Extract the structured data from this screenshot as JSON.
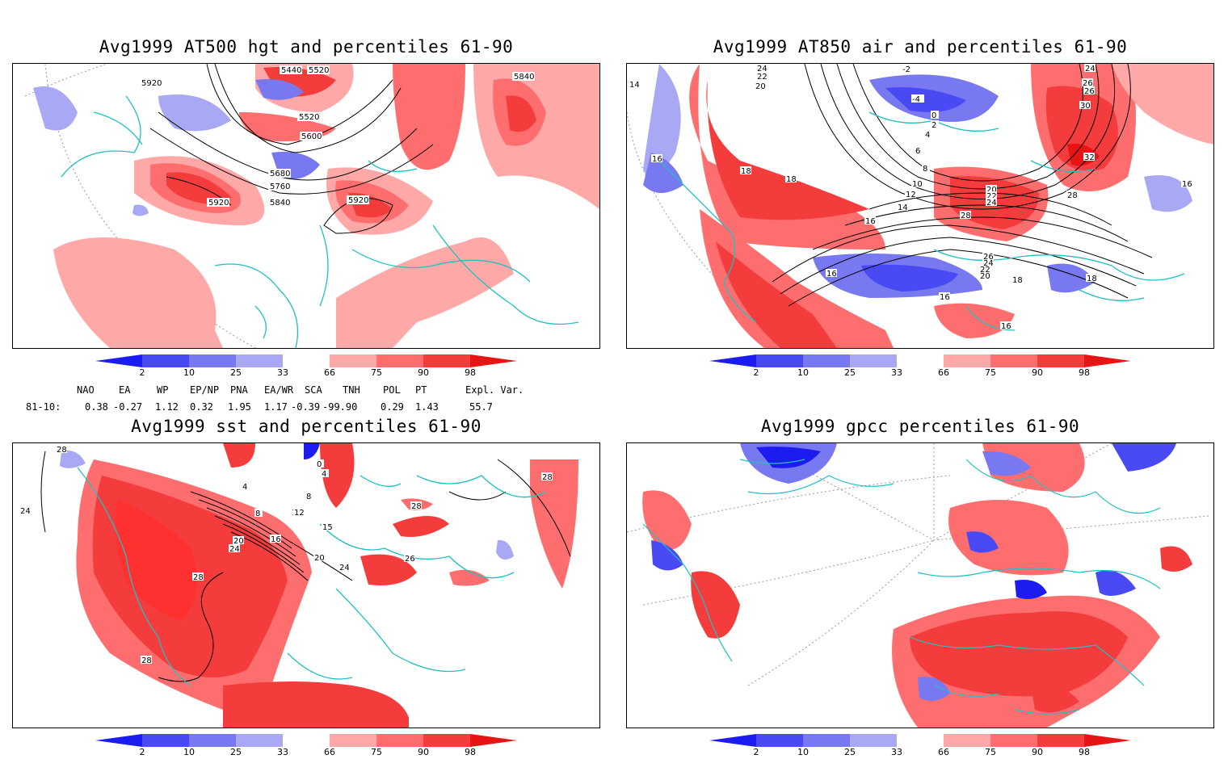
{
  "panels": [
    {
      "title": "Avg1999 AT500 hgt and percentiles 61-90",
      "contour_labels": [
        "5440",
        "5520",
        "5920",
        "5840",
        "5520",
        "5600",
        "5680",
        "5760",
        "5840",
        "5920",
        "5920"
      ]
    },
    {
      "title": "Avg1999 AT850 air and percentiles 61-90",
      "contour_labels": [
        "24",
        "22",
        "20",
        "-2",
        "-4",
        "0",
        "2",
        "4",
        "6",
        "8",
        "10",
        "12",
        "14",
        "16",
        "18",
        "18",
        "16",
        "20",
        "22",
        "24",
        "28",
        "26",
        "30",
        "32",
        "24",
        "26",
        "28",
        "18",
        "16",
        "16",
        "18",
        "20",
        "22",
        "24",
        "26",
        "16",
        "16",
        "14"
      ]
    },
    {
      "title": "Avg1999 sst and percentiles 61-90",
      "contour_labels": [
        "28",
        "24",
        "4",
        "8",
        "12",
        "16",
        "20",
        "24",
        "28",
        "28",
        "28",
        "24",
        "0",
        "4",
        "8",
        "12",
        "15",
        "20",
        "24",
        "26",
        "28"
      ]
    },
    {
      "title": "Avg1999 gpcc percentiles 61-90",
      "contour_labels": []
    }
  ],
  "colorbar": {
    "ticks": [
      "2",
      "10",
      "25",
      "33",
      "66",
      "75",
      "90",
      "98"
    ],
    "colors": [
      "#1c1cf0",
      "#4a4af5",
      "#7878f0",
      "#a8a8f5",
      "#ffffff",
      "#ffa8a8",
      "#ff6e6e",
      "#f53c3c",
      "#e61414",
      "#ff0000"
    ]
  },
  "indices": {
    "header": [
      "NAO",
      "EA",
      "WP",
      "EP/NP",
      "PNA",
      "EA/WR",
      "SCA",
      "TNH",
      "POL",
      "PT",
      "Expl. Var."
    ],
    "row_label": "81-10:",
    "values": [
      "0.38",
      "-0.27",
      "1.12",
      "0.32",
      "1.95",
      "1.17",
      "-0.39",
      "-99.90",
      "0.29",
      "1.43",
      "55.7"
    ]
  },
  "colors": {
    "coast": "#20c0c0",
    "neg_light": "#a8a8f5",
    "neg_mid": "#6464f0",
    "neg_dark": "#1c1cf0",
    "pos_light": "#ffa8a8",
    "pos_mid": "#ff5a5a",
    "pos_dark": "#f01e1e",
    "contour": "#000000"
  }
}
